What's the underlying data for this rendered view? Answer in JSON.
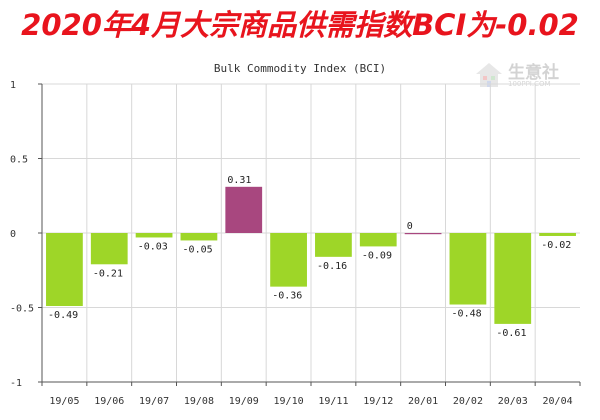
{
  "headline": "2020年4月大宗商品供需指数BCI为-0.02",
  "watermark": {
    "brand": "生意社",
    "sub": "100PPI.COM"
  },
  "colors": {
    "negative": "#9ed628",
    "positive": "#a8477f",
    "grid": "#d8d8d8",
    "axis": "#555555"
  },
  "chart_data": {
    "type": "bar",
    "title": "Bulk Commodity Index (BCI)",
    "categories": [
      "19/05",
      "19/06",
      "19/07",
      "19/08",
      "19/09",
      "19/10",
      "19/11",
      "19/12",
      "20/01",
      "20/02",
      "20/03",
      "20/04"
    ],
    "values": [
      -0.49,
      -0.21,
      -0.03,
      -0.05,
      0.31,
      -0.36,
      -0.16,
      -0.09,
      0,
      -0.48,
      -0.61,
      -0.02
    ],
    "value_labels": [
      "-0.49",
      "-0.21",
      "-0.03",
      "-0.05",
      "0.31",
      "-0.36",
      "-0.16",
      "-0.09",
      "0",
      "-0.48",
      "-0.61",
      "-0.02"
    ],
    "ylim": [
      -1,
      1
    ],
    "yticks": [
      1,
      0.5,
      0,
      -0.5,
      -1
    ],
    "ytick_labels": [
      "1",
      "0.5",
      "0",
      "-0.5",
      "-1"
    ],
    "grid": true,
    "xlabel": "",
    "ylabel": ""
  }
}
